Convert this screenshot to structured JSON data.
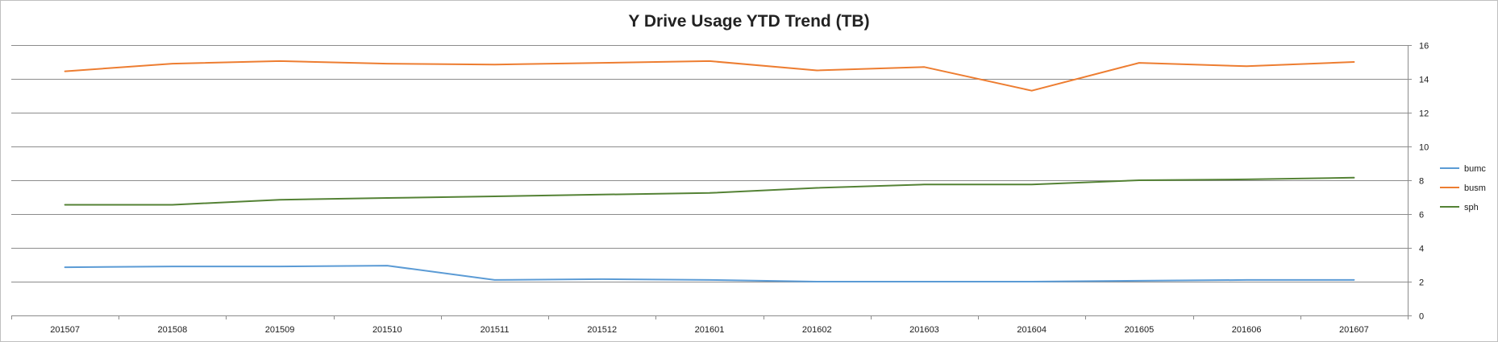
{
  "chart_data": {
    "type": "line",
    "title": "Y Drive Usage YTD Trend (TB)",
    "xlabel": "",
    "ylabel": "",
    "categories": [
      "201507",
      "201508",
      "201509",
      "201510",
      "201511",
      "201512",
      "201601",
      "201602",
      "201603",
      "201604",
      "201605",
      "201606",
      "201607"
    ],
    "ylim": [
      0,
      16
    ],
    "yticks": [
      0,
      2,
      4,
      6,
      8,
      10,
      12,
      14,
      16
    ],
    "y_axis_side": "right",
    "grid": true,
    "legend_position": "right",
    "series": [
      {
        "name": "bumc",
        "color": "#5b9bd5",
        "values": [
          2.85,
          2.9,
          2.9,
          2.95,
          2.1,
          2.15,
          2.1,
          2.0,
          2.0,
          2.0,
          2.05,
          2.1,
          2.1
        ]
      },
      {
        "name": "busm",
        "color": "#ed7d31",
        "values": [
          14.45,
          14.9,
          15.05,
          14.9,
          14.85,
          14.95,
          15.05,
          14.5,
          14.7,
          13.3,
          14.95,
          14.75,
          15.0
        ]
      },
      {
        "name": "sph",
        "color": "#548235",
        "values": [
          6.55,
          6.55,
          6.85,
          6.95,
          7.05,
          7.15,
          7.25,
          7.55,
          7.75,
          7.75,
          8.0,
          8.05,
          8.15
        ]
      }
    ]
  }
}
